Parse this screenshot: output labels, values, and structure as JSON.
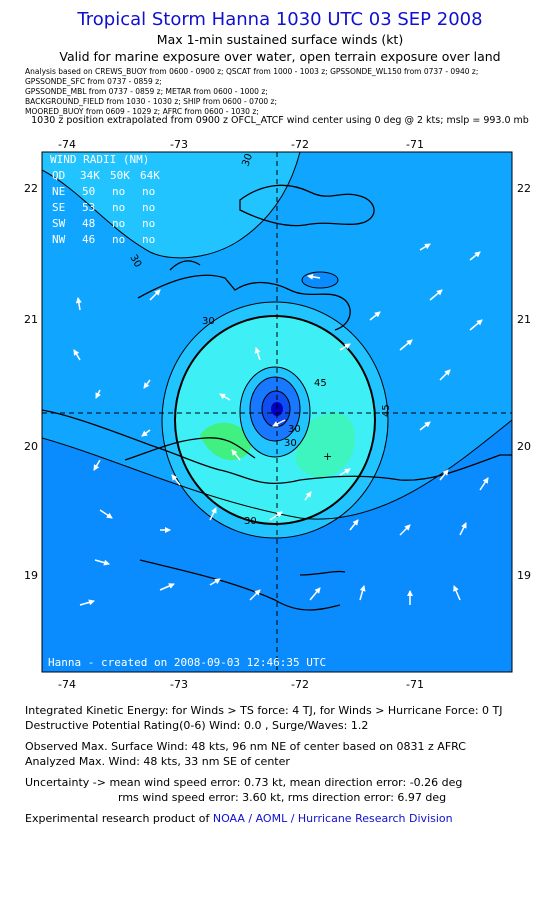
{
  "header": {
    "title": "Tropical Storm Hanna 1030 UTC 03 SEP 2008",
    "subtitle1": "Max 1-min sustained surface winds (kt)",
    "subtitle2": "Valid for marine exposure over water, open terrain exposure over land",
    "meta": [
      "Analysis based on   CREWS_BUOY from 0600 - 0900 z;  QSCAT from 1000 - 1003 z;  GPSSONDE_WL150 from 0737 - 0940 z;",
      "GPSSONDE_SFC from 0737 - 0859 z;",
      "GPSSONDE_MBL from 0737 - 0859 z;   METAR from 0600 - 1000 z;",
      "BACKGROUND_FIELD from 1030 - 1030 z;  SHIP from 0600 - 0700 z;",
      "MOORED_BUOY from 0609 - 1029 z;   AFRC from 0600 - 1030 z;"
    ],
    "position_line": "1030 z position extrapolated from 0900 z OFCL_ATCF wind center using 0 deg @ 2 kts; mslp = 993.0 mb"
  },
  "map": {
    "lon_ticks": [
      "-74",
      "-73",
      "-72",
      "-71"
    ],
    "lat_ticks": [
      "22",
      "21",
      "20",
      "19"
    ],
    "wind_radii": {
      "heading": "WIND RADII (NM)",
      "columns": [
        "QD",
        "34K",
        "50K",
        "64K"
      ],
      "rows": [
        [
          "NE",
          "50",
          "no",
          "no"
        ],
        [
          "SE",
          "53",
          "no",
          "no"
        ],
        [
          "SW",
          "48",
          "no",
          "no"
        ],
        [
          "NW",
          "46",
          "no",
          "no"
        ]
      ]
    },
    "contour_labels": [
      "30",
      "30",
      "30",
      "30",
      "30",
      "45",
      "45",
      "30"
    ],
    "credit": "Hanna - created on 2008-09-03 12:46:35 UTC",
    "colors": {
      "wind_under_20": "#0a8cff",
      "wind_20_30": "#10a6ff",
      "wind_30_35": "#22c4ff",
      "wind_35_40": "#3ef0f6",
      "wind_40_45": "#3ef5c0",
      "wind_45_50": "#40f080",
      "eye_ring_1": "#1878ff",
      "eye_ring_2": "#0e4ef0",
      "eye_core": "#0000c0",
      "land_outline": "#000000",
      "arrow": "#ffffff",
      "center_crosshair": "#000000"
    }
  },
  "footer": {
    "ike": "Integrated Kinetic Energy:  for Winds > TS force: 4 TJ,  for Winds > Hurricane Force: 0 TJ",
    "dpr": "Destructive Potential Rating(0-6)   Wind: 0.0 , Surge/Waves: 1.2",
    "observed": "Observed Max. Surface Wind: 48 kts, 96 nm NE of center based on 0831 z AFRC",
    "analyzed": "Analyzed Max. Wind: 48 kts, 33 nm SE of center",
    "uncertainty": "Uncertainty -> mean wind speed error: 0.73 kt,   mean direction error:  -0.26 deg",
    "rms": "rms wind speed error: 3.60 kt,   rms direction error: 6.97 deg",
    "product_prefix": "Experimental research product of",
    "product_org": "NOAA / AOML / Hurricane Research Division"
  }
}
